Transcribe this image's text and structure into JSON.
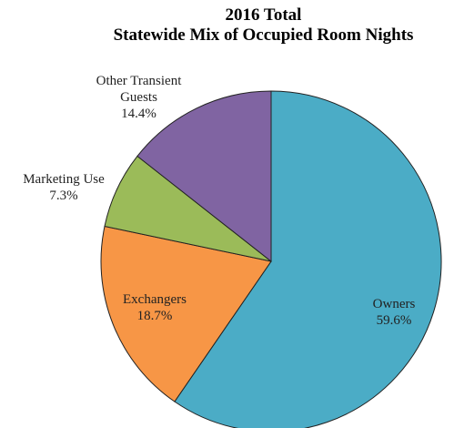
{
  "chart_data": {
    "type": "pie",
    "title": [
      "2016 Total",
      "Statewide Mix of Occupied Room Nights"
    ],
    "categories": [
      "Owners",
      "Exchangers",
      "Marketing Use",
      "Other Transient Guests"
    ],
    "values": [
      59.6,
      18.7,
      7.3,
      14.4
    ],
    "value_labels": [
      "59.6%",
      "18.7%",
      "7.3%",
      "14.4%"
    ],
    "colors": [
      "#4bacc6",
      "#f79646",
      "#9bbb59",
      "#8064a2"
    ],
    "start_angle": 0,
    "direction": "clockwise"
  }
}
